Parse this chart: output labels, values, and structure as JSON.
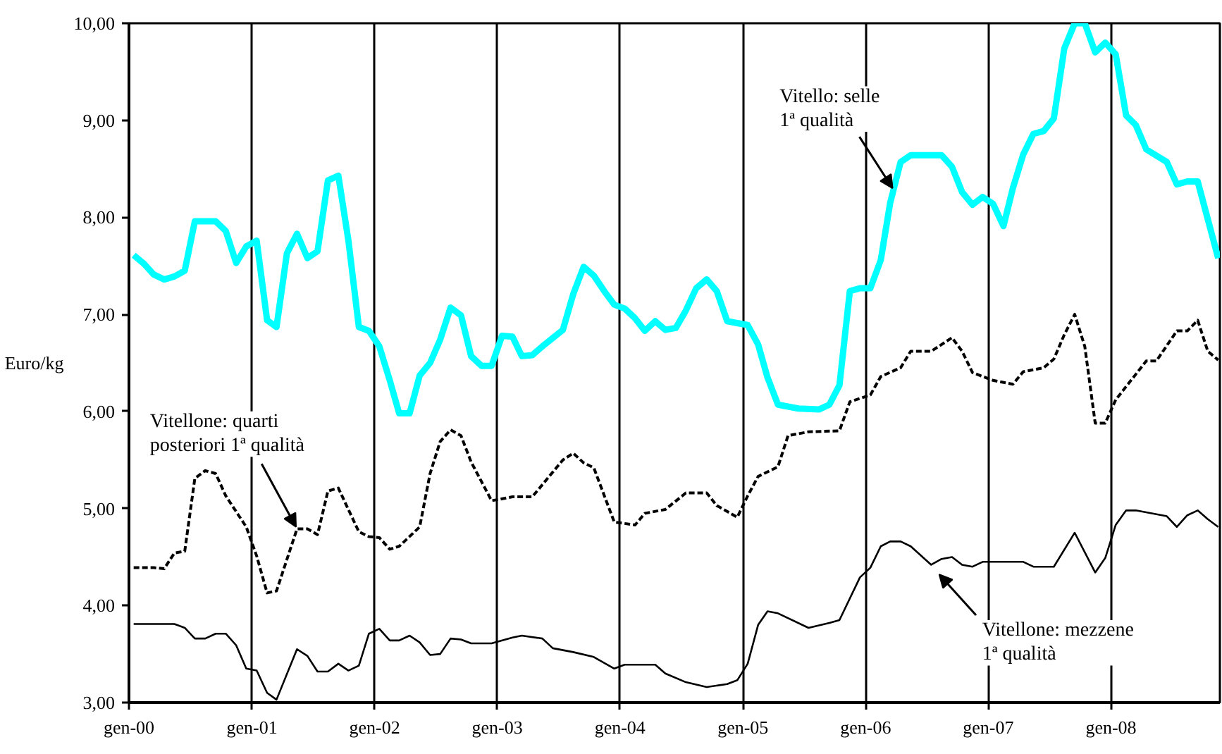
{
  "chart_data": {
    "type": "line",
    "ylabel": "Euro/kg",
    "legend": false,
    "grid": "x",
    "marker": "none",
    "xlim": [
      "2000-01-01",
      "2008-11-20"
    ],
    "ylim": [
      3,
      10
    ],
    "xticks": [
      {
        "value": "2000-01-01",
        "label": "gen-00"
      },
      {
        "value": "2001-01-01",
        "label": "gen-01"
      },
      {
        "value": "2002-01-01",
        "label": "gen-02"
      },
      {
        "value": "2003-01-01",
        "label": "gen-03"
      },
      {
        "value": "2004-01-01",
        "label": "gen-04"
      },
      {
        "value": "2005-01-01",
        "label": "gen-05"
      },
      {
        "value": "2006-01-01",
        "label": "gen-06"
      },
      {
        "value": "2007-01-01",
        "label": "gen-07"
      },
      {
        "value": "2008-01-01",
        "label": "gen-08"
      }
    ],
    "yticks": [
      {
        "value": 3,
        "label": "3,00"
      },
      {
        "value": 4,
        "label": "4,00"
      },
      {
        "value": 5,
        "label": "5,00"
      },
      {
        "value": 6,
        "label": "6,00"
      },
      {
        "value": 7,
        "label": "7,00"
      },
      {
        "value": 8,
        "label": "8,00"
      },
      {
        "value": 9,
        "label": "9,00"
      },
      {
        "value": 10,
        "label": "10,00"
      }
    ],
    "series": [
      {
        "name": "Vitello: selle\n1ª qualità",
        "color": "#00ffff",
        "line_style": "solid",
        "x": [
          "2000-01-15",
          "2000-02-15",
          "2000-03-15",
          "2000-04-15",
          "2000-05-15",
          "2000-06-15",
          "2000-07-15",
          "2000-09-15",
          "2000-10-15",
          "2000-11-15",
          "2000-12-15",
          "2001-01-15",
          "2001-02-15",
          "2001-03-15",
          "2001-04-15",
          "2001-05-15",
          "2001-06-15",
          "2001-07-15",
          "2001-08-15",
          "2001-09-15",
          "2001-10-15",
          "2001-11-15",
          "2001-12-15",
          "2002-01-15",
          "2002-02-15",
          "2002-03-15",
          "2002-04-15",
          "2002-05-15",
          "2002-06-15",
          "2002-07-15",
          "2002-08-15",
          "2002-09-15",
          "2002-10-15",
          "2002-11-15",
          "2002-12-15",
          "2003-01-15",
          "2003-02-15",
          "2003-03-15",
          "2003-04-15",
          "2003-05-15",
          "2003-07-15",
          "2003-08-15",
          "2003-09-15",
          "2003-10-15",
          "2003-11-15",
          "2003-12-15",
          "2004-01-15",
          "2004-02-15",
          "2004-03-15",
          "2004-04-15",
          "2004-05-15",
          "2004-06-15",
          "2004-07-15",
          "2004-08-15",
          "2004-09-15",
          "2004-10-15",
          "2004-11-15",
          "2004-12-15",
          "2005-01-15",
          "2005-02-15",
          "2005-03-15",
          "2005-04-15",
          "2005-06-15",
          "2005-08-15",
          "2005-09-15",
          "2005-10-15",
          "2005-11-15",
          "2005-12-15",
          "2006-01-15",
          "2006-02-15",
          "2006-03-15",
          "2006-04-15",
          "2006-05-15",
          "2006-08-15",
          "2006-09-15",
          "2006-10-15",
          "2006-11-15",
          "2006-12-15",
          "2007-01-15",
          "2007-02-15",
          "2007-03-15",
          "2007-04-15",
          "2007-05-15",
          "2007-06-15",
          "2007-07-15",
          "2007-08-15",
          "2007-09-15",
          "2007-10-15",
          "2007-11-15",
          "2007-12-15",
          "2008-01-15",
          "2008-02-15",
          "2008-03-15",
          "2008-04-15",
          "2008-06-15",
          "2008-07-15",
          "2008-08-15",
          "2008-09-15",
          "2008-11-15"
        ],
        "values": [
          7.61,
          7.52,
          7.41,
          7.36,
          7.39,
          7.45,
          7.96,
          7.96,
          7.86,
          7.53,
          7.7,
          7.76,
          6.94,
          6.87,
          7.63,
          7.83,
          7.58,
          7.65,
          8.38,
          8.43,
          7.76,
          6.87,
          6.83,
          6.67,
          6.32,
          5.98,
          5.98,
          6.37,
          6.5,
          6.74,
          7.07,
          6.99,
          6.57,
          6.47,
          6.47,
          6.78,
          6.77,
          6.57,
          6.58,
          6.67,
          6.84,
          7.21,
          7.49,
          7.4,
          7.24,
          7.1,
          7.06,
          6.96,
          6.83,
          6.93,
          6.84,
          6.86,
          7.04,
          7.27,
          7.36,
          7.24,
          6.93,
          6.91,
          6.89,
          6.69,
          6.35,
          6.07,
          6.03,
          6.02,
          6.07,
          6.27,
          7.24,
          7.27,
          7.27,
          7.56,
          8.15,
          8.57,
          8.64,
          8.64,
          8.52,
          8.26,
          8.13,
          8.21,
          8.14,
          7.91,
          8.3,
          8.65,
          8.86,
          8.89,
          9.02,
          9.74,
          10.0,
          10.0,
          9.7,
          9.8,
          9.68,
          9.05,
          8.95,
          8.7,
          8.57,
          8.34,
          8.37,
          8.37,
          7.58
        ]
      },
      {
        "name": "Vitellone: quarti\nposteriori 1ª qualità",
        "color": "#000000",
        "line_style": "dashed",
        "x": [
          "2000-01-15",
          "2000-03-15",
          "2000-04-15",
          "2000-05-15",
          "2000-06-15",
          "2000-07-15",
          "2000-08-15",
          "2000-09-15",
          "2000-10-15",
          "2000-12-15",
          "2001-01-15",
          "2001-02-15",
          "2001-03-15",
          "2001-05-15",
          "2001-06-15",
          "2001-07-15",
          "2001-08-15",
          "2001-09-15",
          "2001-11-15",
          "2001-12-15",
          "2002-01-15",
          "2002-02-15",
          "2002-03-15",
          "2002-05-15",
          "2002-06-15",
          "2002-07-15",
          "2002-08-15",
          "2002-09-15",
          "2002-10-15",
          "2002-12-15",
          "2003-02-15",
          "2003-04-15",
          "2003-07-15",
          "2003-08-15",
          "2003-09-15",
          "2003-10-15",
          "2003-12-15",
          "2004-02-15",
          "2004-03-15",
          "2004-05-15",
          "2004-07-15",
          "2004-09-15",
          "2004-10-15",
          "2004-12-15",
          "2005-01-15",
          "2005-02-15",
          "2005-04-15",
          "2005-05-15",
          "2005-07-15",
          "2005-10-15",
          "2005-11-15",
          "2006-01-15",
          "2006-02-15",
          "2006-04-15",
          "2006-05-15",
          "2006-07-15",
          "2006-09-15",
          "2006-10-15",
          "2006-11-15",
          "2007-01-15",
          "2007-03-15",
          "2007-04-15",
          "2007-06-15",
          "2007-07-15",
          "2007-08-15",
          "2007-09-15",
          "2007-10-15",
          "2007-11-15",
          "2007-12-15",
          "2008-01-15",
          "2008-04-15",
          "2008-05-15",
          "2008-07-15",
          "2008-08-15",
          "2008-09-15",
          "2008-10-15",
          "2008-11-15"
        ],
        "values": [
          4.39,
          4.39,
          4.38,
          4.54,
          4.56,
          5.31,
          5.39,
          5.36,
          5.13,
          4.81,
          4.51,
          4.13,
          4.15,
          4.79,
          4.79,
          4.73,
          5.18,
          5.21,
          4.76,
          4.71,
          4.7,
          4.58,
          4.61,
          4.81,
          5.36,
          5.69,
          5.81,
          5.75,
          5.48,
          5.08,
          5.12,
          5.12,
          5.5,
          5.57,
          5.47,
          5.42,
          4.86,
          4.83,
          4.95,
          4.99,
          5.16,
          5.16,
          5.03,
          4.91,
          5.13,
          5.33,
          5.43,
          5.75,
          5.79,
          5.8,
          6.1,
          6.17,
          6.36,
          6.45,
          6.62,
          6.62,
          6.76,
          6.62,
          6.4,
          6.32,
          6.28,
          6.41,
          6.45,
          6.54,
          6.79,
          7.0,
          6.67,
          5.88,
          5.88,
          6.12,
          6.52,
          6.52,
          6.83,
          6.83,
          6.94,
          6.62,
          6.53
        ]
      },
      {
        "name": "Vitellone: mezzene\n1ª qualità",
        "color": "#000000",
        "line_style": "solid",
        "x": [
          "2000-01-15",
          "2000-05-15",
          "2000-06-15",
          "2000-07-15",
          "2000-08-15",
          "2000-09-15",
          "2000-10-15",
          "2000-11-15",
          "2000-12-15",
          "2001-01-15",
          "2001-02-15",
          "2001-03-15",
          "2001-05-15",
          "2001-06-15",
          "2001-07-15",
          "2001-08-15",
          "2001-09-15",
          "2001-10-15",
          "2001-11-15",
          "2001-12-15",
          "2002-01-15",
          "2002-02-15",
          "2002-03-15",
          "2002-04-15",
          "2002-05-15",
          "2002-06-15",
          "2002-07-15",
          "2002-08-15",
          "2002-09-15",
          "2002-10-15",
          "2002-12-15",
          "2003-02-15",
          "2003-03-15",
          "2003-05-15",
          "2003-06-15",
          "2003-08-15",
          "2003-10-15",
          "2003-12-15",
          "2004-01-15",
          "2004-04-15",
          "2004-05-15",
          "2004-07-15",
          "2004-09-15",
          "2004-11-15",
          "2004-12-15",
          "2005-01-15",
          "2005-02-15",
          "2005-03-15",
          "2005-04-15",
          "2005-07-15",
          "2005-09-15",
          "2005-10-15",
          "2005-12-15",
          "2006-01-15",
          "2006-02-15",
          "2006-03-15",
          "2006-04-15",
          "2006-05-15",
          "2006-07-15",
          "2006-08-15",
          "2006-09-15",
          "2006-10-15",
          "2006-11-15",
          "2006-12-15",
          "2007-04-15",
          "2007-05-15",
          "2007-07-15",
          "2007-09-15",
          "2007-11-15",
          "2007-12-15",
          "2008-01-15",
          "2008-02-15",
          "2008-03-15",
          "2008-06-15",
          "2008-07-15",
          "2008-08-15",
          "2008-09-15",
          "2008-10-15",
          "2008-11-15"
        ],
        "values": [
          3.81,
          3.81,
          3.77,
          3.66,
          3.66,
          3.71,
          3.71,
          3.59,
          3.35,
          3.33,
          3.1,
          3.03,
          3.55,
          3.48,
          3.32,
          3.32,
          3.4,
          3.33,
          3.38,
          3.71,
          3.76,
          3.64,
          3.64,
          3.69,
          3.62,
          3.49,
          3.5,
          3.66,
          3.65,
          3.61,
          3.61,
          3.67,
          3.69,
          3.66,
          3.56,
          3.52,
          3.47,
          3.35,
          3.39,
          3.39,
          3.3,
          3.21,
          3.16,
          3.19,
          3.23,
          3.4,
          3.8,
          3.94,
          3.92,
          3.77,
          3.82,
          3.85,
          4.29,
          4.39,
          4.61,
          4.66,
          4.66,
          4.61,
          4.42,
          4.48,
          4.5,
          4.42,
          4.4,
          4.45,
          4.45,
          4.4,
          4.4,
          4.75,
          4.34,
          4.49,
          4.83,
          4.98,
          4.98,
          4.92,
          4.81,
          4.93,
          4.98,
          4.89,
          4.81
        ]
      }
    ]
  }
}
